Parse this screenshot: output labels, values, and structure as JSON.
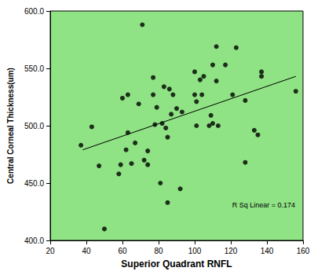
{
  "chart_data": {
    "type": "scatter",
    "x_label": "Superior Quadrant RNFL",
    "y_label": "Central Corneal Thickness(um)",
    "annotation": "R Sq Linear = 0.174",
    "x": [
      37,
      43,
      47,
      50,
      58,
      59,
      60,
      62,
      63,
      63,
      65,
      67,
      69,
      71,
      72,
      74,
      74,
      77,
      77,
      78,
      79,
      81,
      82,
      83,
      84,
      85,
      85,
      86,
      87,
      88,
      90,
      92,
      93,
      100,
      100,
      101,
      101,
      103,
      104,
      105,
      108,
      109,
      110,
      110,
      112,
      112,
      113,
      117,
      121,
      123,
      128,
      128,
      133,
      135,
      137,
      137,
      156
    ],
    "values": [
      483,
      499,
      465,
      410,
      458,
      466,
      524,
      479,
      527,
      494,
      467,
      485,
      519,
      588,
      470,
      478,
      466,
      542,
      527,
      501,
      516,
      450,
      502,
      534,
      498,
      433,
      490,
      532,
      510,
      527,
      515,
      445,
      512,
      547,
      527,
      521,
      500,
      540,
      527,
      543,
      500,
      509,
      502,
      553,
      569,
      539,
      500,
      553,
      527,
      568,
      522,
      468,
      496,
      492,
      547,
      543,
      530
    ],
    "color": "#000000",
    "marker": "circle",
    "fit_line": {
      "x": [
        38,
        156
      ],
      "y": [
        479,
        543
      ]
    },
    "xlim": [
      20,
      160
    ],
    "xticks": [
      20,
      40,
      60,
      80,
      100,
      120,
      140,
      160
    ],
    "ylim": [
      400,
      600
    ],
    "yticks": [
      {
        "value": 400,
        "label": "400.0"
      },
      {
        "value": 450,
        "label": "450.0"
      },
      {
        "value": 500,
        "label": "500.0"
      },
      {
        "value": 550,
        "label": "550.0"
      },
      {
        "value": 600,
        "label": "600.0"
      }
    ],
    "grid": false
  }
}
